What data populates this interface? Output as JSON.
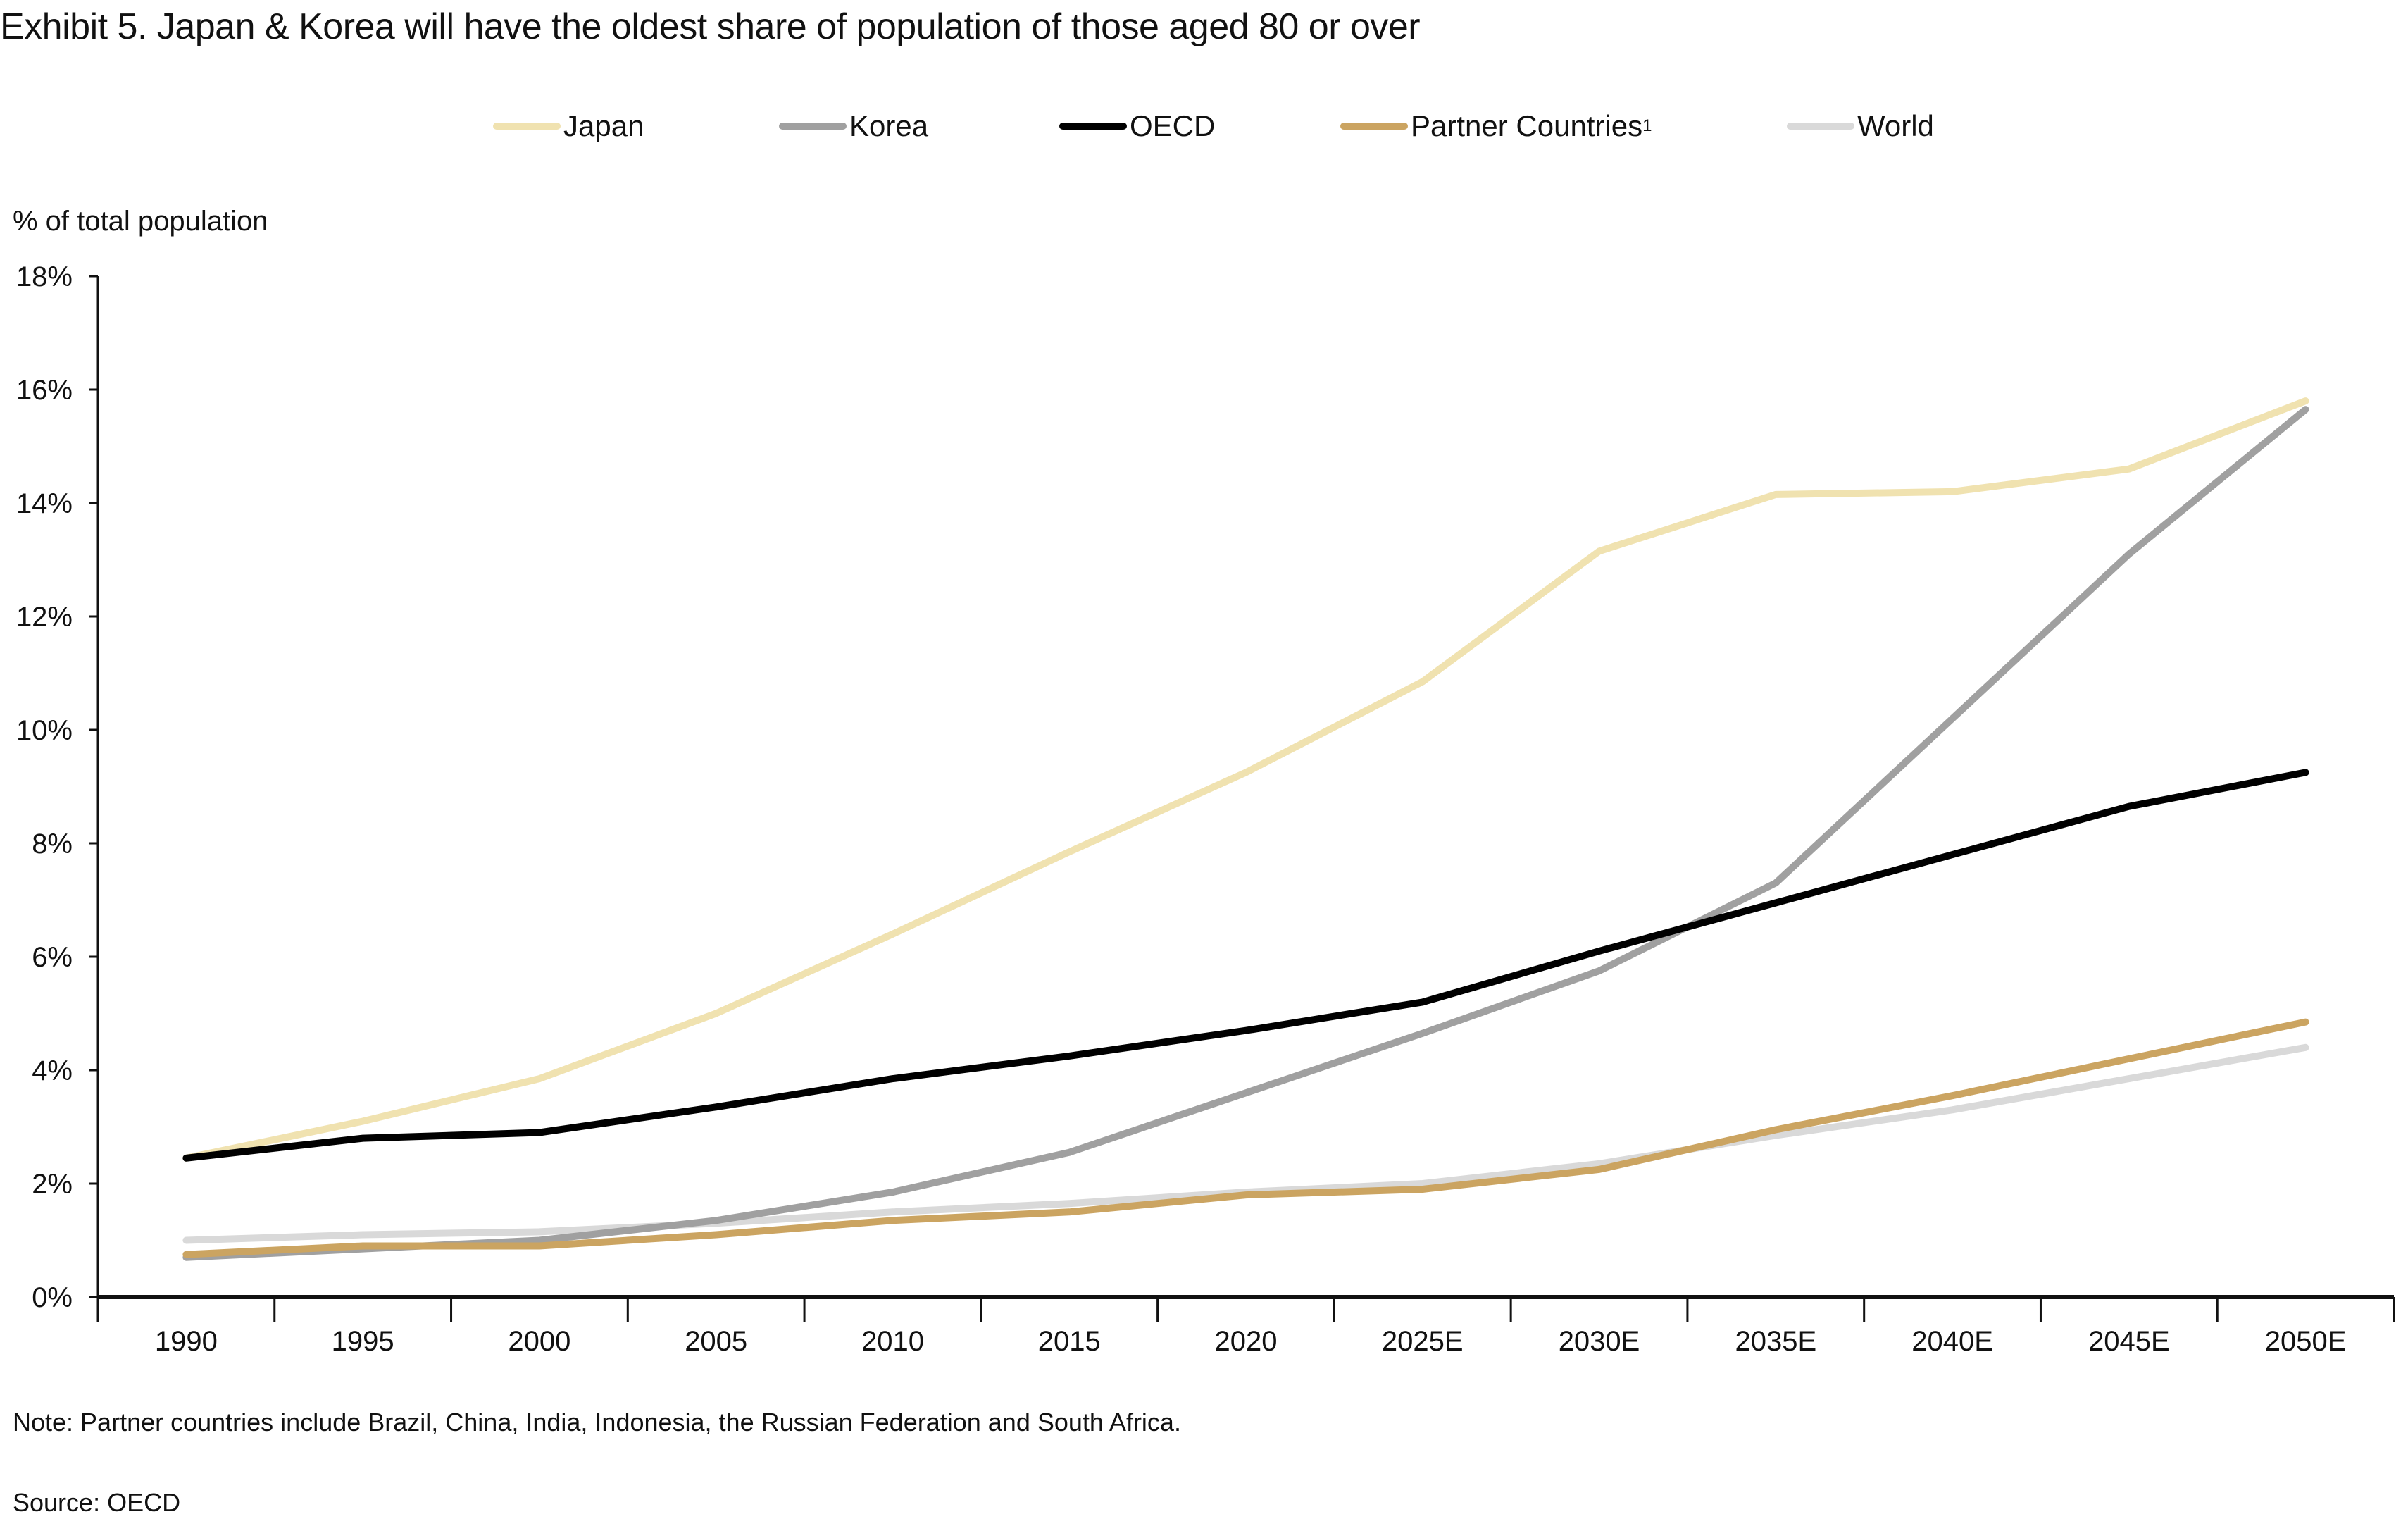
{
  "chart_data": {
    "type": "line",
    "title": "Exhibit 5. Japan & Korea will have the oldest share of population of those aged 80 or over",
    "ylabel": "% of total population",
    "xlabel": "",
    "categories": [
      "1990",
      "1995",
      "2000",
      "2005",
      "2010",
      "2015",
      "2020",
      "2025E",
      "2030E",
      "2035E",
      "2040E",
      "2045E",
      "2050E"
    ],
    "ylim": [
      0,
      18
    ],
    "yticks": [
      "0%",
      "2%",
      "4%",
      "6%",
      "8%",
      "10%",
      "12%",
      "14%",
      "16%",
      "18%"
    ],
    "ytick_values": [
      0,
      2,
      4,
      6,
      8,
      10,
      12,
      14,
      16,
      18
    ],
    "grid": false,
    "legend_placement": "top-center",
    "series": [
      {
        "name": "Japan",
        "color": "#f0e2b0",
        "values": [
          2.45,
          3.1,
          3.85,
          5.0,
          6.4,
          7.85,
          9.25,
          10.85,
          13.15,
          14.15,
          14.2,
          14.6,
          15.8
        ]
      },
      {
        "name": "Korea",
        "color": "#a0a0a0",
        "values": [
          0.7,
          0.85,
          1.0,
          1.35,
          1.85,
          2.55,
          3.6,
          4.65,
          5.75,
          7.3,
          10.2,
          13.1,
          15.65
        ]
      },
      {
        "name": "OECD",
        "color": "#000000",
        "values": [
          2.45,
          2.8,
          2.9,
          3.35,
          3.85,
          4.25,
          4.7,
          5.2,
          6.1,
          6.95,
          7.8,
          8.65,
          9.25
        ]
      },
      {
        "name": "Partner Countries",
        "superscript": "1",
        "color": "#cba461",
        "values": [
          0.75,
          0.9,
          0.9,
          1.1,
          1.35,
          1.5,
          1.8,
          1.9,
          2.25,
          2.95,
          3.55,
          4.2,
          4.85
        ]
      },
      {
        "name": "World",
        "color": "#d9d9d9",
        "values": [
          1.0,
          1.1,
          1.15,
          1.3,
          1.5,
          1.65,
          1.85,
          2.0,
          2.35,
          2.85,
          3.3,
          3.85,
          4.4
        ]
      }
    ]
  },
  "footer": {
    "note": "Note: Partner countries include Brazil, China, India, Indonesia, the Russian Federation and South Africa.",
    "source": "Source: OECD"
  }
}
